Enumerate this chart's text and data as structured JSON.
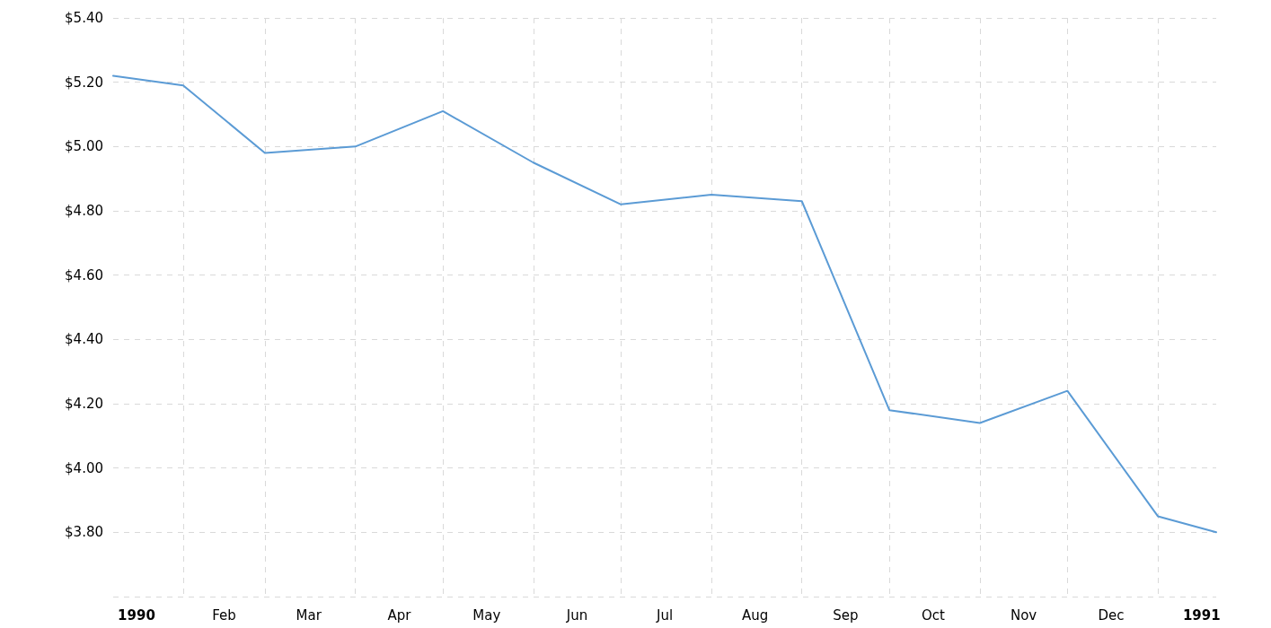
{
  "chart_data": {
    "type": "line",
    "x": [
      "1990-01-08",
      "1990-02-01",
      "1990-03-01",
      "1990-04-01",
      "1990-05-01",
      "1990-06-01",
      "1990-07-01",
      "1990-08-01",
      "1990-09-01",
      "1990-10-01",
      "1990-11-01",
      "1990-12-01",
      "1991-01-01",
      "1991-01-21"
    ],
    "values": [
      5.22,
      5.19,
      4.98,
      5.0,
      5.11,
      4.95,
      4.82,
      4.85,
      4.83,
      4.18,
      4.14,
      4.24,
      3.85,
      3.8
    ],
    "color": "#5b9bd5",
    "xlim": [
      "1990-01-08",
      "1991-01-21"
    ],
    "xticks": [
      {
        "value": "1990-02-01",
        "label": null
      },
      {
        "value": "1990-03-01",
        "label": null
      },
      {
        "value": "1990-04-01",
        "label": null
      },
      {
        "value": "1990-05-01",
        "label": null
      },
      {
        "value": "1990-06-01",
        "label": null
      },
      {
        "value": "1990-07-01",
        "label": null
      },
      {
        "value": "1990-08-01",
        "label": null
      },
      {
        "value": "1990-09-01",
        "label": null
      },
      {
        "value": "1990-10-01",
        "label": null
      },
      {
        "value": "1990-11-01",
        "label": null
      },
      {
        "value": "1990-12-01",
        "label": null
      },
      {
        "value": "1991-01-01",
        "label": null
      },
      {
        "value": "1990-01-16",
        "label": "1990"
      },
      {
        "value": "1990-02-15",
        "label": "Feb"
      },
      {
        "value": "1990-03-16",
        "label": "Mar"
      },
      {
        "value": "1990-04-16",
        "label": "Apr"
      },
      {
        "value": "1990-05-16",
        "label": "May"
      },
      {
        "value": "1990-06-16",
        "label": "Jun"
      },
      {
        "value": "1990-07-16",
        "label": "Jul"
      },
      {
        "value": "1990-08-16",
        "label": "Aug"
      },
      {
        "value": "1990-09-16",
        "label": "Sep"
      },
      {
        "value": "1990-10-16",
        "label": "Oct"
      },
      {
        "value": "1990-11-16",
        "label": "Nov"
      },
      {
        "value": "1990-12-16",
        "label": "Dec"
      },
      {
        "value": "1991-01-16",
        "label": "1991"
      }
    ],
    "ylim": [
      3.6,
      5.4
    ],
    "yticks": [
      {
        "value": 3.6,
        "label": null
      },
      {
        "value": 3.8,
        "label": "$3.80"
      },
      {
        "value": 4.0,
        "label": "$4.00"
      },
      {
        "value": 4.2,
        "label": "$4.20"
      },
      {
        "value": 4.4,
        "label": "$4.40"
      },
      {
        "value": 4.6,
        "label": "$4.60"
      },
      {
        "value": 4.8,
        "label": "$4.80"
      },
      {
        "value": 5.0,
        "label": "$5.00"
      },
      {
        "value": 5.2,
        "label": "$5.20"
      },
      {
        "value": 5.4,
        "label": "$5.40"
      }
    ],
    "grid": true,
    "marker": "none",
    "line_style": "solid"
  }
}
